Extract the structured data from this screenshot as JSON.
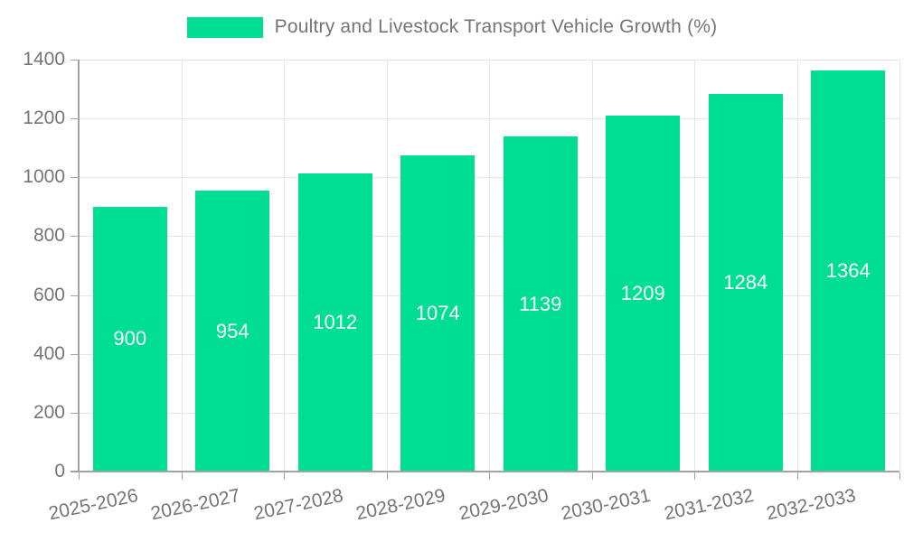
{
  "page": {
    "background": "#ffffff"
  },
  "legend": {
    "label": "Poultry and Livestock Transport Vehicle Growth (%)"
  },
  "chart_data": {
    "type": "bar",
    "title": "Poultry and Livestock Transport Vehicle Growth (%)",
    "categories": [
      "2025-2026",
      "2026-2027",
      "2027-2028",
      "2028-2029",
      "2029-2030",
      "2030-2031",
      "2031-2032",
      "2032-2033"
    ],
    "values": [
      900,
      954,
      1012,
      1074,
      1139,
      1209,
      1284,
      1364
    ],
    "xlabel": "",
    "ylabel": "",
    "ylim": [
      0,
      1400
    ],
    "y_ticks": [
      0,
      200,
      400,
      600,
      800,
      1000,
      1200,
      1400
    ],
    "grid": true,
    "legend_position": "top-center",
    "colors": {
      "bar": "#00DE94",
      "value_label": "#ffffff",
      "axis_text": "#757575",
      "grid_line": "#e6e6e6",
      "axis_line": "#a3a3a3"
    },
    "x_tick_rotation_deg": -12
  }
}
